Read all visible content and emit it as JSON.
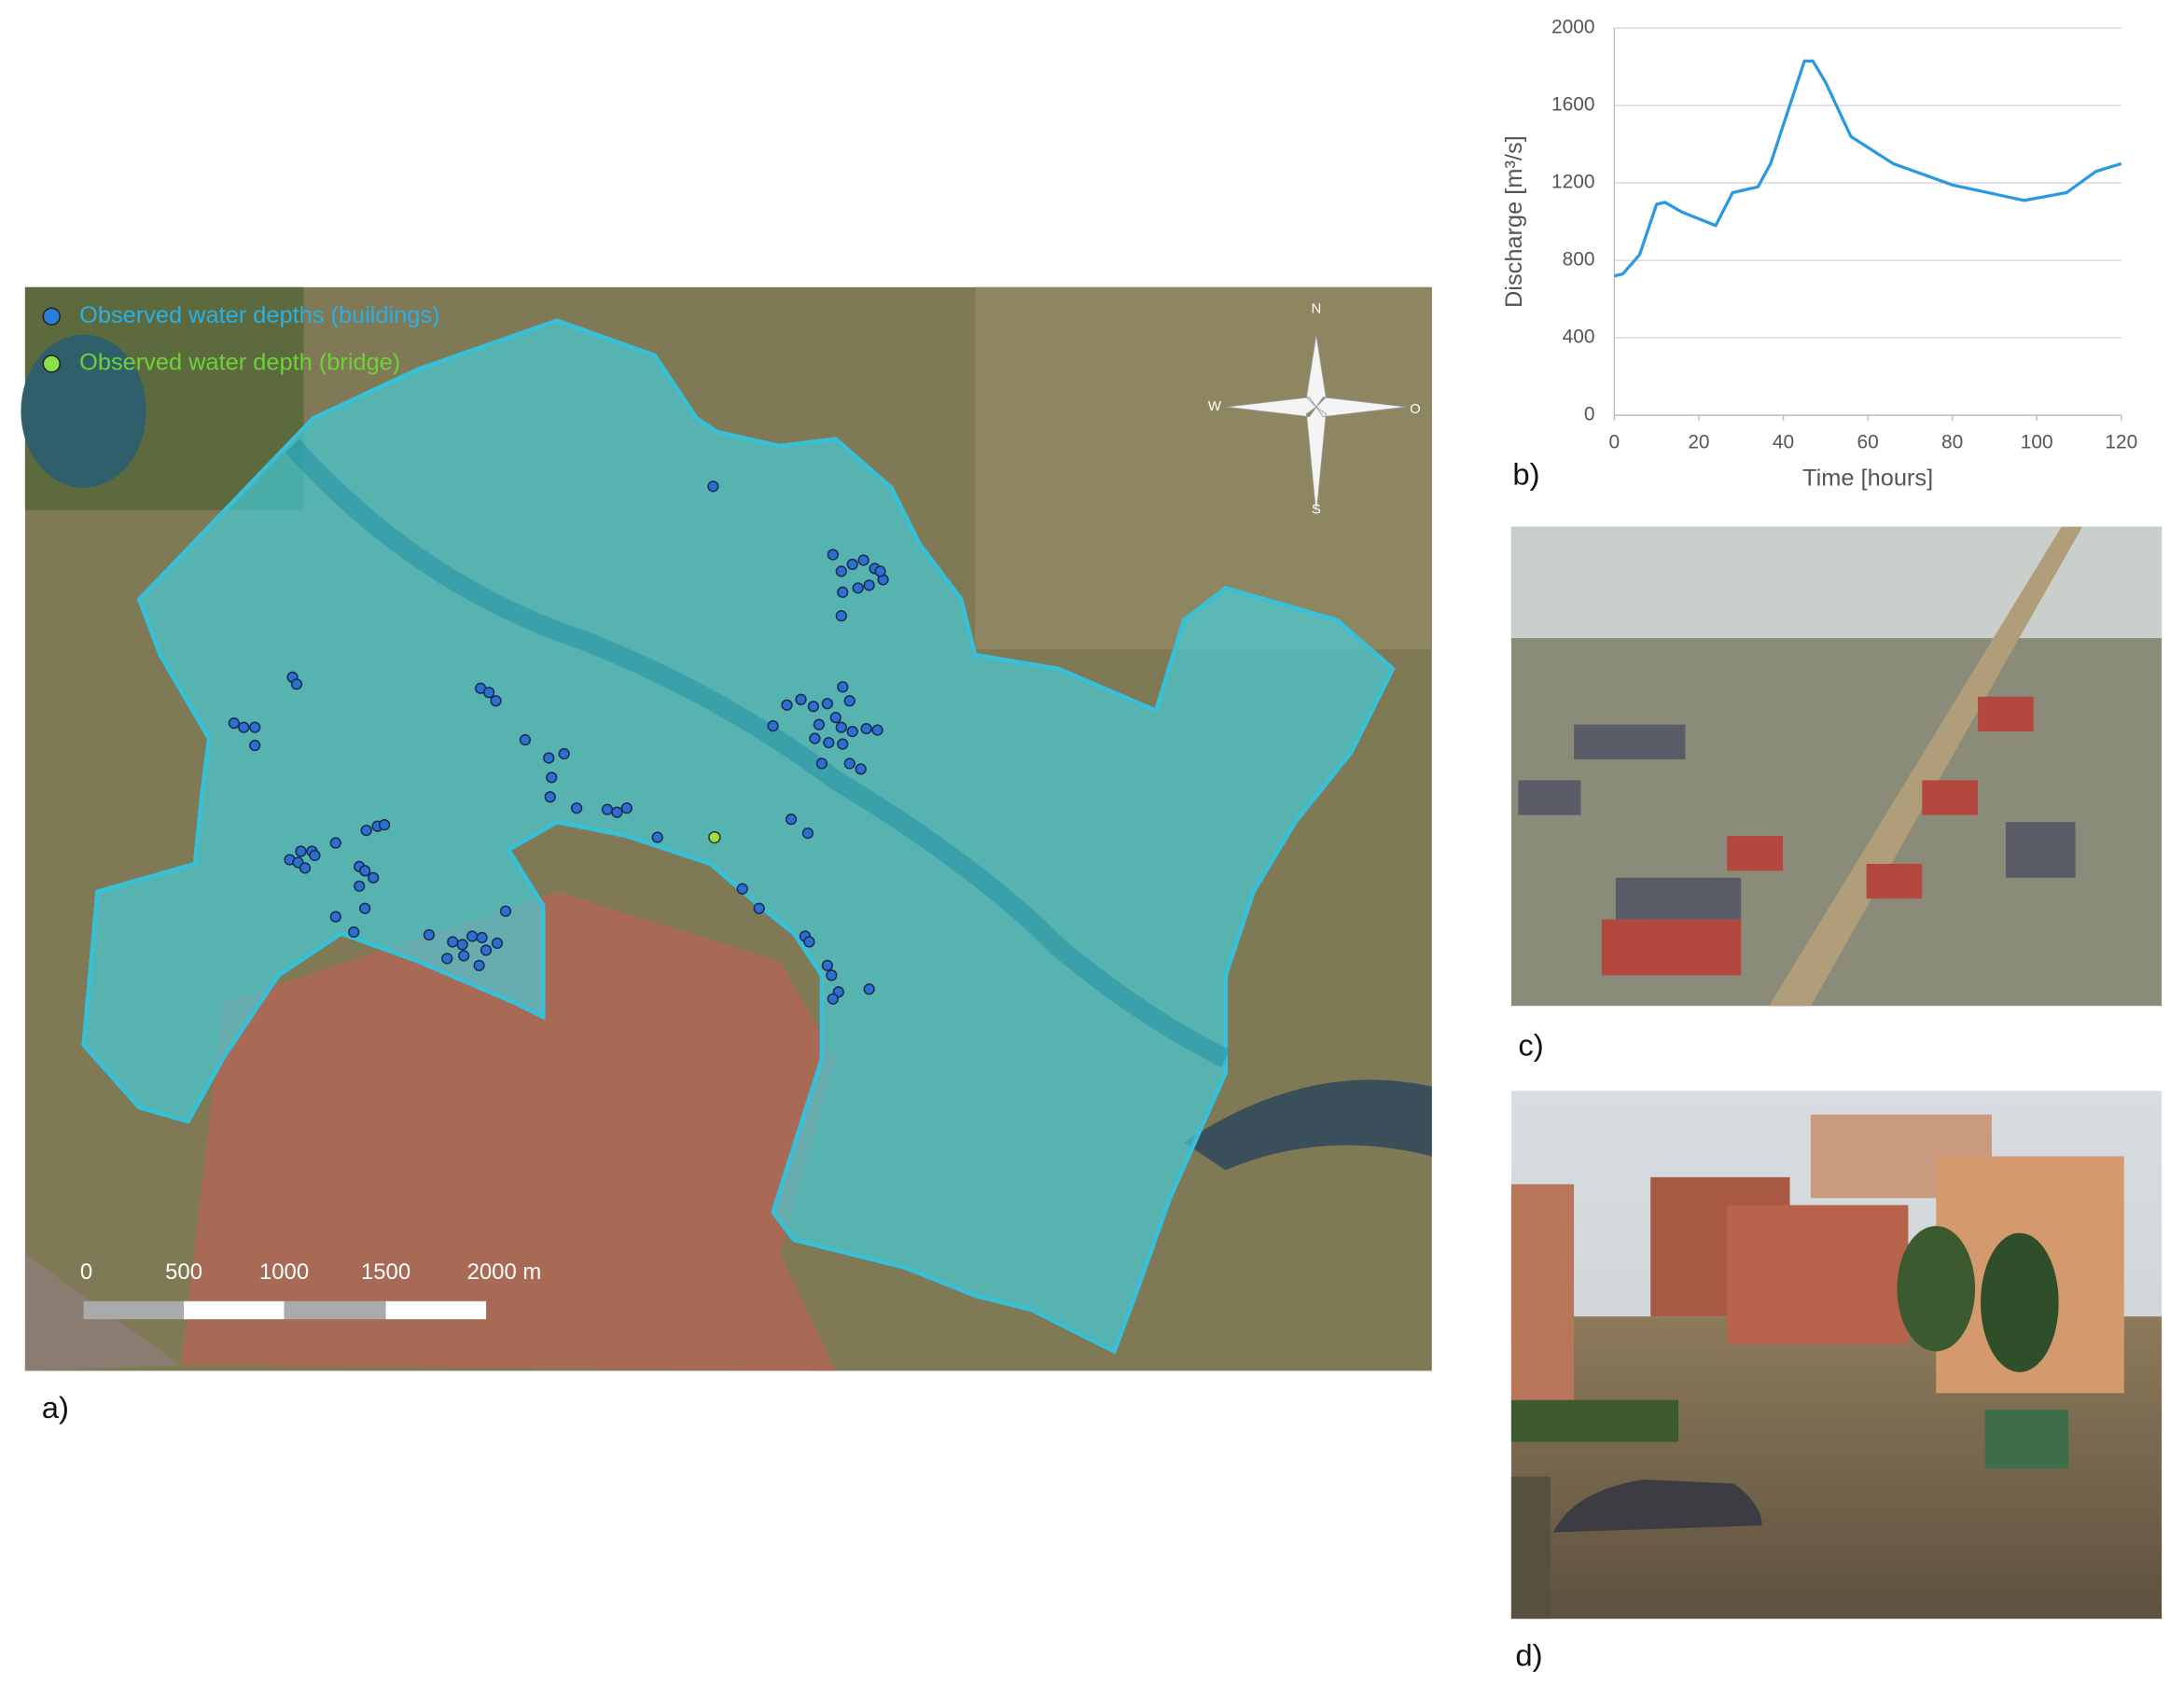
{
  "chart_data": {
    "type": "line",
    "ylabel": "Discharge [m³/s]",
    "xlabel": "Time [hours]",
    "x": [
      0,
      2,
      6,
      10,
      12,
      16,
      24,
      28,
      34,
      37,
      40,
      45,
      47,
      50,
      56,
      66,
      80,
      97,
      107,
      114,
      120
    ],
    "values": [
      720,
      730,
      830,
      1090,
      1100,
      1050,
      980,
      1150,
      1180,
      1300,
      1500,
      1830,
      1830,
      1720,
      1440,
      1300,
      1190,
      1110,
      1150,
      1260,
      1300
    ],
    "color": "#2a9ae0",
    "xlim": [
      0,
      120
    ],
    "xticks": [
      0,
      20,
      40,
      60,
      80,
      100,
      120
    ],
    "ylim": [
      0,
      2000
    ],
    "yticks": [
      0,
      400,
      800,
      1200,
      1600,
      2000
    ],
    "grid": true
  },
  "map": {
    "legend": [
      "Observed water depths (buildings)",
      "Observed water depth (bridge)"
    ],
    "compass": [
      "N",
      "W",
      "O",
      "S"
    ],
    "scale_labels": [
      "0",
      "500",
      "1000",
      "1500",
      "2000 m"
    ]
  },
  "panel_labels": [
    "a)",
    "b)",
    "c)",
    "d)"
  ]
}
